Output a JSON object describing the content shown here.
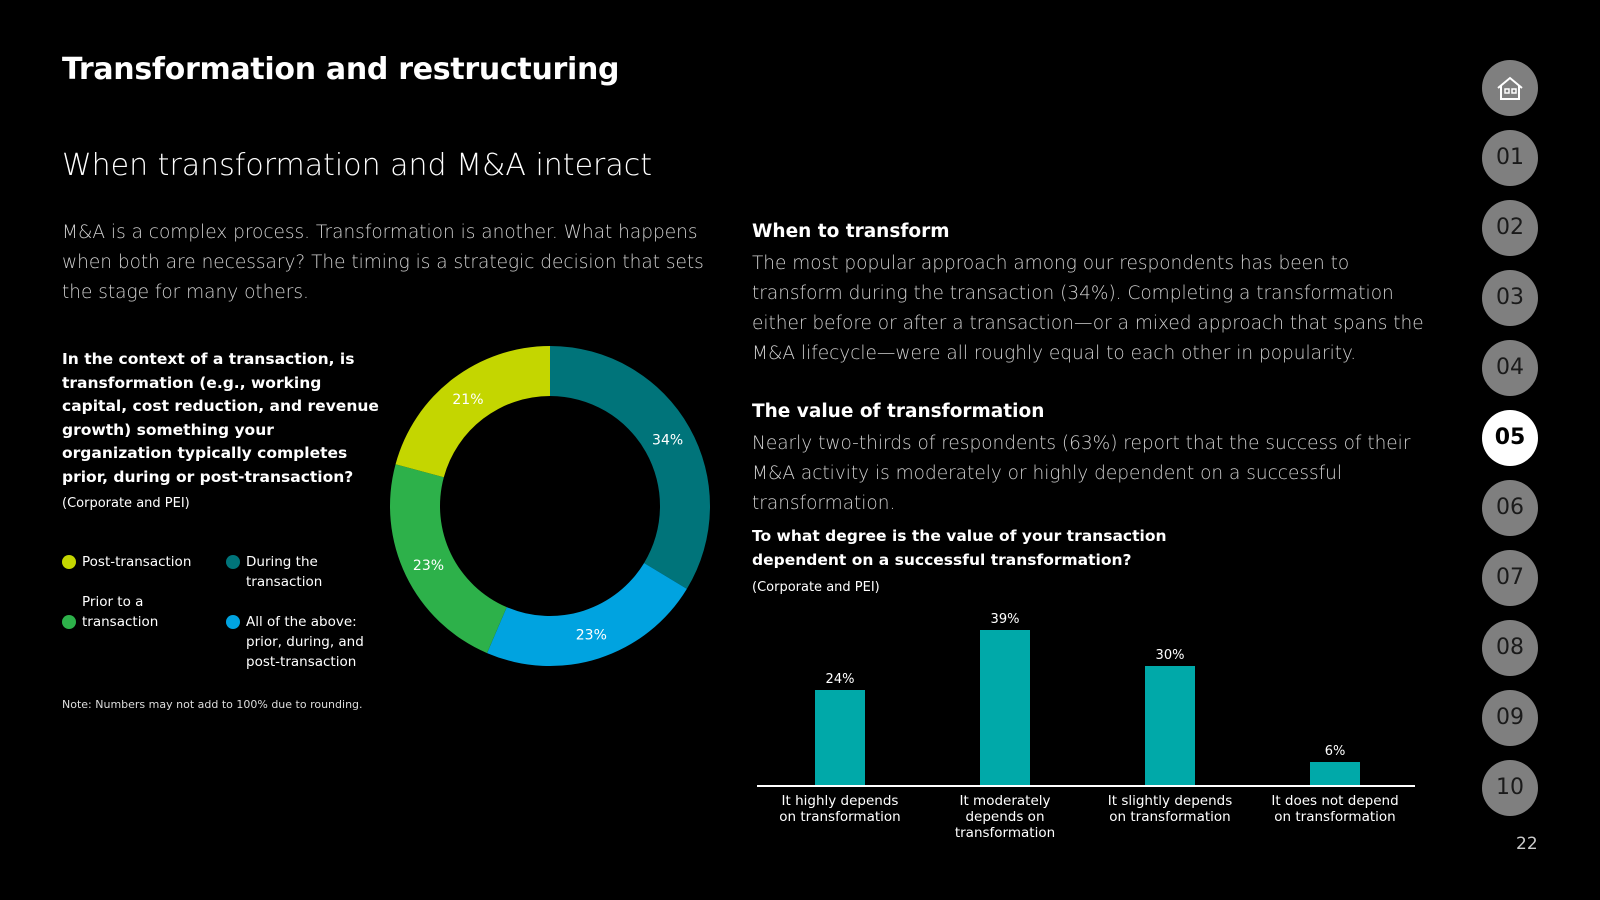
{
  "title": "Transformation and restructuring",
  "subtitle": "When transformation and M&A interact",
  "intro": "M&A is a complex process. Transformation is another. What happens when both are necessary? The timing is a strategic decision that sets the stage for many others.",
  "donut_question": "In the context of a transaction, is transformation (e.g., working capital, cost reduction, and revenue growth) something your organization typically completes prior, during or post-transaction?",
  "donut_base": "(Corporate and PEI)",
  "note": "Note: Numbers may not add to 100% due to rounding.",
  "legend": [
    {
      "label": "Post-transaction",
      "color": "#c4d600"
    },
    {
      "label": "During the transaction",
      "color": "#00747a"
    },
    {
      "label": "Prior to a transaction",
      "color": "#2db14a"
    },
    {
      "label": "All of the above: prior, during, and post-transaction",
      "color": "#00a3e0"
    }
  ],
  "section1": {
    "heading": "When to transform",
    "body": "The most popular approach among our respondents has been to transform during the transaction (34%). Completing a transformation either before or after a transaction—or a mixed approach that spans the M&A lifecycle—were all roughly equal to each other in popularity."
  },
  "section2": {
    "heading": "The value of transformation",
    "body": "Nearly two-thirds of respondents (63%) report that the success of their M&A activity is moderately or highly dependent on a successful transformation."
  },
  "bar_question": "To what degree is the value of your transaction dependent on a successful transformation?",
  "bar_base": "(Corporate and PEI)",
  "nav": {
    "home_icon": "home-icon",
    "items": [
      "01",
      "02",
      "03",
      "04",
      "05",
      "06",
      "07",
      "08",
      "09",
      "10"
    ],
    "active": "05"
  },
  "page_number": "22",
  "chart_data": [
    {
      "type": "pie",
      "variant": "donut",
      "title": "In the context of a transaction, is transformation something your organization typically completes prior, during or post-transaction?",
      "slices": [
        {
          "name": "During the transaction",
          "value": 34,
          "label": "34%",
          "color": "#00747a"
        },
        {
          "name": "All of the above: prior, during, and post-transaction",
          "value": 23,
          "label": "23%",
          "color": "#00a3e0"
        },
        {
          "name": "Prior to a transaction",
          "value": 23,
          "label": "23%",
          "color": "#2db14a"
        },
        {
          "name": "Post-transaction",
          "value": 21,
          "label": "21%",
          "color": "#c4d600"
        }
      ]
    },
    {
      "type": "bar",
      "title": "To what degree is the value of your transaction dependent on a successful transformation?",
      "categories": [
        [
          "It highly depends",
          "on transformation"
        ],
        [
          "It moderately",
          "depends on",
          "transformation"
        ],
        [
          "It slightly depends",
          "on transformation"
        ],
        [
          "It does not depend",
          "on transformation"
        ]
      ],
      "values": [
        24,
        39,
        30,
        6
      ],
      "labels": [
        "24%",
        "39%",
        "30%",
        "6%"
      ],
      "color": "#00a9a9",
      "ylim": [
        0,
        40
      ]
    }
  ]
}
